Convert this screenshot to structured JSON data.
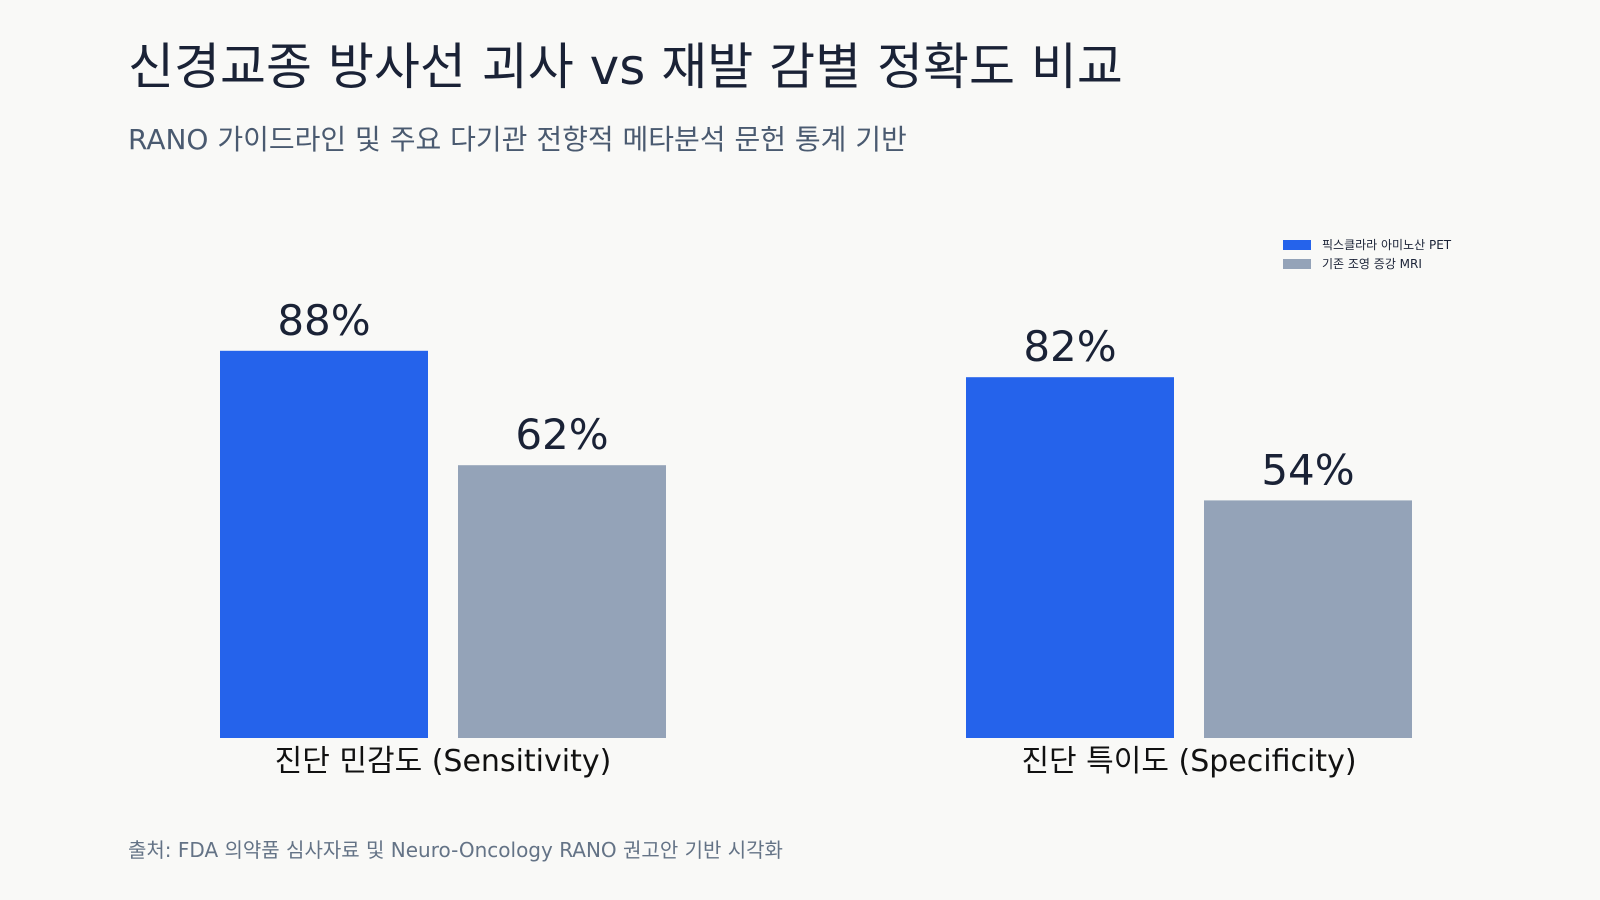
{
  "chart_data": {
    "type": "bar",
    "title": "신경교종 방사선 괴사 vs 재발 감별 정확도 비교",
    "subtitle": "RANO 가이드라인 및 주요 다기관 전향적 메타분석 문헌 통계 기반",
    "categories": [
      "진단 민감도 (Sensitivity)",
      "진단 특이도 (Specificity)"
    ],
    "series": [
      {
        "name": "픽스클라라 아미노산 PET",
        "values": [
          88,
          82
        ],
        "labels": [
          "88%",
          "82%"
        ],
        "color": "#2563eb"
      },
      {
        "name": "기존 조영 증강 MRI",
        "values": [
          62,
          54
        ],
        "labels": [
          "62%",
          "54%"
        ],
        "color": "#94a3b8"
      }
    ],
    "ylim": [
      0,
      100
    ],
    "grid": false,
    "legend_position": "top-right"
  },
  "footer": {
    "source": "출처: FDA 의약품 심사자료 및 Neuro-Oncology RANO 권고안 기반 시각화"
  }
}
